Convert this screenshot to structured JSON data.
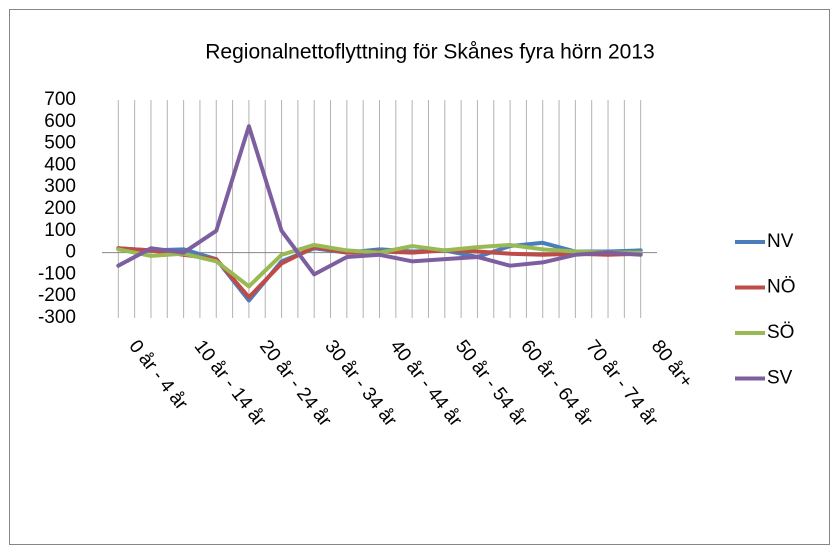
{
  "chart_data": {
    "type": "line",
    "title": "Regionalnettoflyttning  för  Skånes fyra hörn 2013",
    "categories": [
      "0 år - 4 år",
      null,
      "10 år - 14 år",
      null,
      "20 år - 24 år",
      null,
      "30 år - 34 år",
      null,
      "40 år - 44 år",
      null,
      "50 år - 54 år",
      null,
      "60 år - 64 år",
      null,
      "70 år - 74 år",
      null,
      "80 år+"
    ],
    "series": [
      {
        "name": "NV",
        "color": "#4a7ebb",
        "values": [
          20,
          10,
          15,
          -30,
          -220,
          -40,
          20,
          0,
          15,
          5,
          10,
          -20,
          30,
          45,
          5,
          5,
          10
        ]
      },
      {
        "name": "NÖ",
        "color": "#be4b48",
        "values": [
          20,
          10,
          -10,
          -30,
          -205,
          -50,
          25,
          0,
          5,
          0,
          10,
          5,
          -5,
          -10,
          -5,
          -10,
          -5
        ]
      },
      {
        "name": "SÖ",
        "color": "#98b954",
        "values": [
          15,
          -15,
          -5,
          -40,
          -155,
          -10,
          35,
          10,
          0,
          30,
          10,
          25,
          35,
          15,
          5,
          0,
          0
        ]
      },
      {
        "name": "SV",
        "color": "#7d5fa0",
        "values": [
          -60,
          20,
          0,
          100,
          580,
          100,
          -100,
          -20,
          -10,
          -40,
          -30,
          -20,
          -60,
          -45,
          -10,
          0,
          -10
        ]
      }
    ],
    "ylim": [
      -300,
      700
    ],
    "yticks": [
      -300,
      -200,
      -100,
      0,
      100,
      200,
      300,
      400,
      500,
      600,
      700
    ],
    "grid": true,
    "legend": "right"
  }
}
